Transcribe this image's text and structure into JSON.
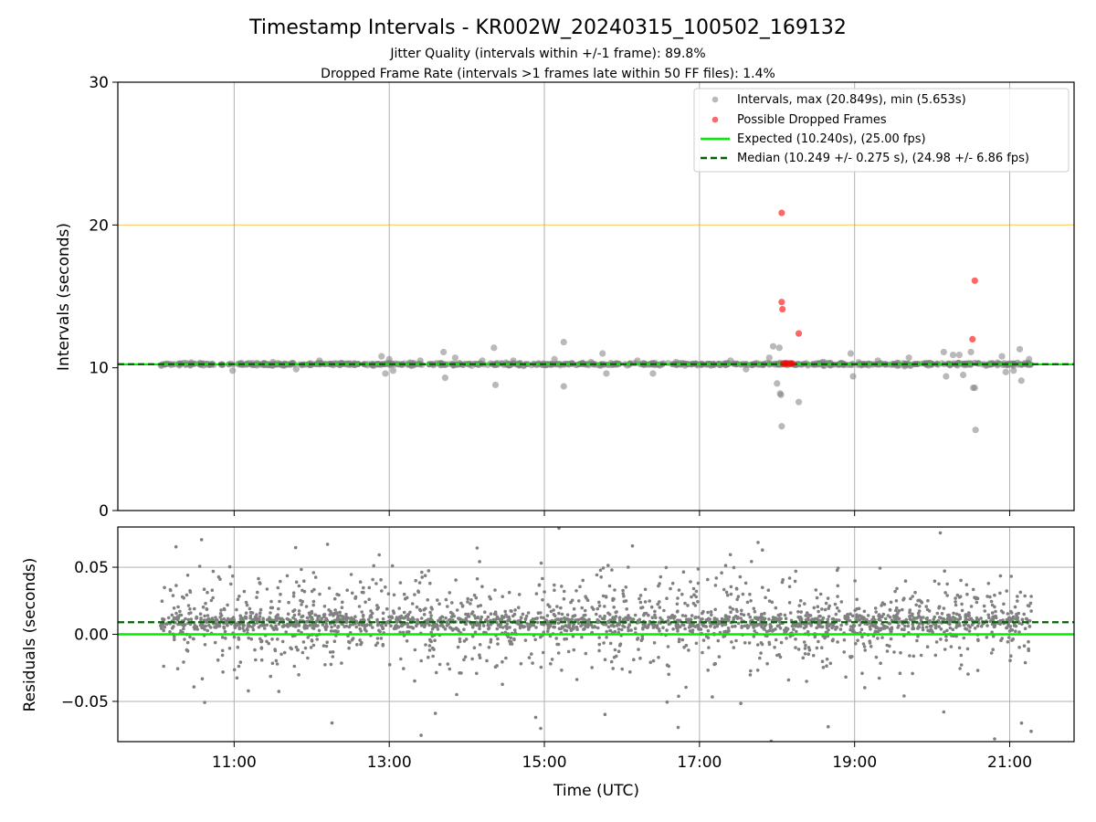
{
  "chart_data": {
    "type": "scatter",
    "title": "Timestamp Intervals - KR002W_20240315_100502_169132",
    "subtitle_lines": [
      "Jitter Quality (intervals within +/-1 frame): 89.8%",
      "Dropped Frame Rate (intervals >1 frames late within 50 FF files): 1.4%"
    ],
    "xlabel": "Time (UTC)",
    "x_tick_labels": [
      "11:00",
      "13:00",
      "15:00",
      "17:00",
      "19:00",
      "21:00"
    ],
    "x_tick_hours": [
      11,
      13,
      15,
      17,
      19,
      21
    ],
    "xlim_hours": [
      9.5,
      21.83
    ],
    "data_range_hours": [
      10.05,
      21.28
    ],
    "grid": true,
    "legend_position": "top-right",
    "top_panel": {
      "ylabel": "Intervals (seconds)",
      "ylim": [
        0,
        30
      ],
      "y_ticks": [
        0,
        10,
        20,
        30
      ],
      "y_tick_labels": [
        "0",
        "10",
        "20",
        "30"
      ],
      "reference_line": 20,
      "expected": 10.24,
      "median": 10.249,
      "legend": [
        "Intervals, max (20.849s), min (5.653s)",
        "Possible Dropped Frames",
        "Expected (10.240s), (25.00 fps)",
        "Median (10.249 +/- 0.275 s), (24.98 +/- 6.86 fps)"
      ],
      "outliers": [
        {
          "x": 10.98,
          "y": 9.8
        },
        {
          "x": 11.5,
          "y": 10.4
        },
        {
          "x": 11.8,
          "y": 9.9
        },
        {
          "x": 12.1,
          "y": 10.5
        },
        {
          "x": 12.5,
          "y": 10.3
        },
        {
          "x": 12.9,
          "y": 10.8
        },
        {
          "x": 12.95,
          "y": 9.6
        },
        {
          "x": 13.0,
          "y": 10.6
        },
        {
          "x": 13.05,
          "y": 9.8
        },
        {
          "x": 13.4,
          "y": 10.5
        },
        {
          "x": 13.7,
          "y": 11.1
        },
        {
          "x": 13.72,
          "y": 9.3
        },
        {
          "x": 13.85,
          "y": 10.7
        },
        {
          "x": 14.2,
          "y": 10.5
        },
        {
          "x": 14.35,
          "y": 11.4
        },
        {
          "x": 14.37,
          "y": 8.8
        },
        {
          "x": 14.6,
          "y": 10.5
        },
        {
          "x": 14.9,
          "y": 10.2
        },
        {
          "x": 15.13,
          "y": 10.6
        },
        {
          "x": 15.25,
          "y": 11.8
        },
        {
          "x": 15.25,
          "y": 8.7
        },
        {
          "x": 15.6,
          "y": 10.4
        },
        {
          "x": 15.75,
          "y": 11.0
        },
        {
          "x": 15.8,
          "y": 9.6
        },
        {
          "x": 16.2,
          "y": 10.5
        },
        {
          "x": 16.4,
          "y": 9.6
        },
        {
          "x": 16.7,
          "y": 10.4
        },
        {
          "x": 17.4,
          "y": 10.5
        },
        {
          "x": 17.6,
          "y": 9.9
        },
        {
          "x": 17.9,
          "y": 10.7
        },
        {
          "x": 17.95,
          "y": 11.5
        },
        {
          "x": 18.0,
          "y": 8.9
        },
        {
          "x": 18.03,
          "y": 11.4
        },
        {
          "x": 18.04,
          "y": 8.2
        },
        {
          "x": 18.05,
          "y": 8.1
        },
        {
          "x": 18.06,
          "y": 5.9
        },
        {
          "x": 18.28,
          "y": 7.6
        },
        {
          "x": 18.6,
          "y": 10.4
        },
        {
          "x": 18.95,
          "y": 11.0
        },
        {
          "x": 18.98,
          "y": 9.4
        },
        {
          "x": 19.3,
          "y": 10.5
        },
        {
          "x": 19.7,
          "y": 10.7
        },
        {
          "x": 19.9,
          "y": 10.3
        },
        {
          "x": 20.15,
          "y": 11.1
        },
        {
          "x": 20.18,
          "y": 9.4
        },
        {
          "x": 20.27,
          "y": 10.9
        },
        {
          "x": 20.35,
          "y": 10.9
        },
        {
          "x": 20.4,
          "y": 9.5
        },
        {
          "x": 20.5,
          "y": 11.1
        },
        {
          "x": 20.53,
          "y": 8.6
        },
        {
          "x": 20.55,
          "y": 8.6
        },
        {
          "x": 20.56,
          "y": 5.65
        },
        {
          "x": 20.9,
          "y": 10.8
        },
        {
          "x": 20.95,
          "y": 9.7
        },
        {
          "x": 21.05,
          "y": 9.8
        },
        {
          "x": 21.13,
          "y": 11.3
        },
        {
          "x": 21.15,
          "y": 9.1
        },
        {
          "x": 21.25,
          "y": 10.6
        }
      ],
      "dropped_frames": [
        {
          "x": 18.06,
          "y": 20.849
        },
        {
          "x": 18.06,
          "y": 14.6
        },
        {
          "x": 18.07,
          "y": 14.1
        },
        {
          "x": 18.28,
          "y": 12.4
        },
        {
          "x": 20.52,
          "y": 12.0
        },
        {
          "x": 20.55,
          "y": 16.1
        },
        {
          "x": 18.08,
          "y": 10.3
        },
        {
          "x": 18.11,
          "y": 10.3
        },
        {
          "x": 18.14,
          "y": 10.3
        },
        {
          "x": 18.17,
          "y": 10.3
        },
        {
          "x": 18.2,
          "y": 10.3
        }
      ]
    },
    "bottom_panel": {
      "ylabel": "Residuals (seconds)",
      "ylim": [
        -0.08,
        0.08
      ],
      "y_ticks": [
        -0.05,
        0.0,
        0.05
      ],
      "y_tick_labels": [
        "−0.05",
        "0.00",
        "0.05"
      ],
      "expected_residual": 0.0,
      "median_residual": 0.009,
      "residual_spread": 0.016
    },
    "colors": {
      "intervals": "#808080",
      "dropped": "#ff0000",
      "expected": "#00ee00",
      "median": "#006400",
      "reference": "#ffa500",
      "grid": "#b0b0b0"
    }
  }
}
